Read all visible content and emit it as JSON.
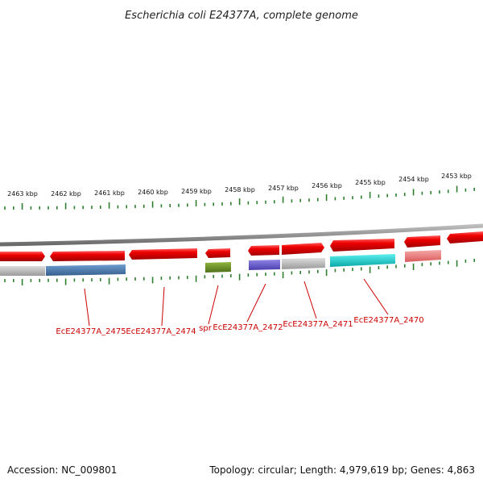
{
  "title": "Escherichia coli E24377A, complete genome",
  "ticks": [
    {
      "label": "2463 kbp"
    },
    {
      "label": "2462 kbp"
    },
    {
      "label": "2461 kbp"
    },
    {
      "label": "2460 kbp"
    },
    {
      "label": "2459 kbp"
    },
    {
      "label": "2458 kbp"
    },
    {
      "label": "2457 kbp"
    },
    {
      "label": "2456 kbp"
    },
    {
      "label": "2455 kbp"
    },
    {
      "label": "2454 kbp"
    },
    {
      "label": "2453 kbp"
    }
  ],
  "gene_labels": [
    {
      "name": "EcE24377A_2475"
    },
    {
      "name": "EcE24377A_2474"
    },
    {
      "name": "spr"
    },
    {
      "name": "EcE24377A_2472"
    },
    {
      "name": "EcE24377A_2471"
    },
    {
      "name": "EcE24377A_2470"
    }
  ],
  "footer": {
    "accession": "Accession: NC_009801",
    "summary": "Topology: circular; Length: 4,979,619 bp; Genes: 4,863"
  },
  "colors": {
    "backbone": "#8a8a8a",
    "gene": "#ee0000",
    "tick": "#2f7d2f",
    "label": "#cc0000",
    "feature_gray": "#bdbdbd",
    "feature_blue": "#4a7fb5",
    "feature_olive": "#6b8e23",
    "feature_purple": "#6a5acd",
    "feature_cyan": "#10d0d0",
    "feature_pink": "#ee7a7a"
  }
}
